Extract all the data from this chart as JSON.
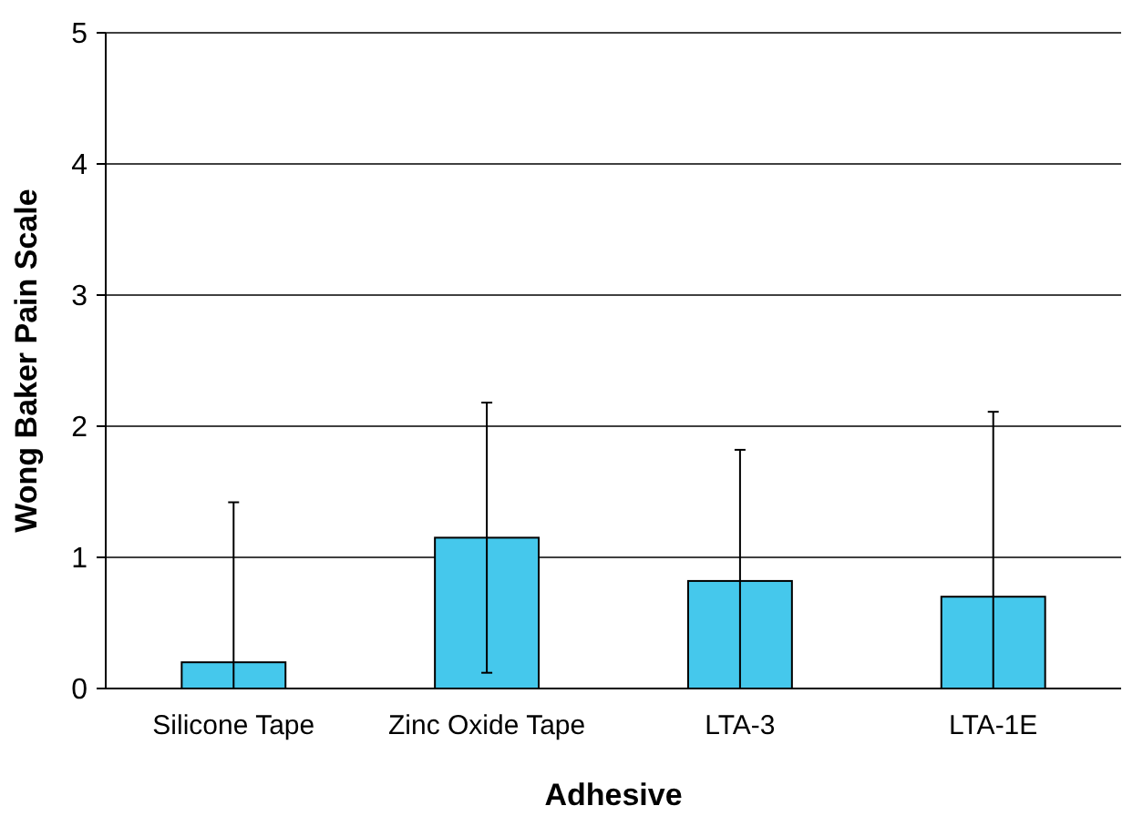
{
  "chart_data": {
    "type": "bar",
    "xlabel": "Adhesive",
    "ylabel": "Wong Baker Pain Scale",
    "categories": [
      "Silicone Tape",
      "Zinc Oxide Tape",
      "LTA-3",
      "LTA-1E"
    ],
    "values": [
      0.2,
      1.15,
      0.82,
      0.7
    ],
    "errors": [
      [
        0,
        1.42
      ],
      [
        0.12,
        2.18
      ],
      [
        0,
        1.82
      ],
      [
        0,
        2.11
      ]
    ],
    "color": "#45c8ec",
    "ylim": [
      0,
      5
    ],
    "yticks": [
      0,
      1,
      2,
      3,
      4,
      5
    ],
    "grid": "y"
  }
}
